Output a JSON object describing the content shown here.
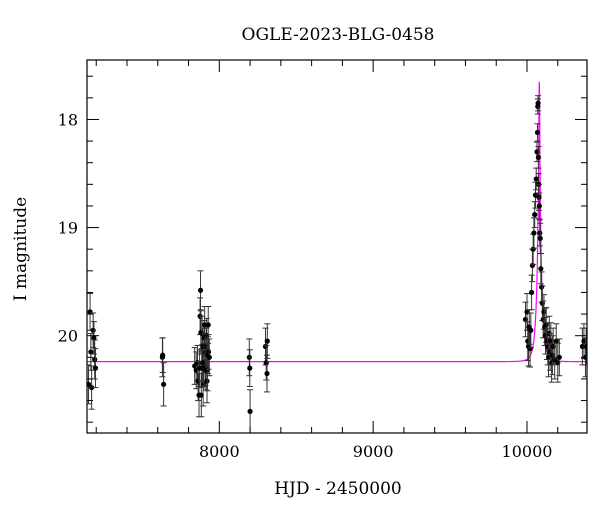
{
  "chart_data": {
    "type": "scatter",
    "title": "OGLE-2023-BLG-0458",
    "xlabel": "HJD - 2450000",
    "ylabel": "I magnitude",
    "xlim": [
      7140,
      10390
    ],
    "ylim": [
      20.9,
      17.45
    ],
    "y_inverted": true,
    "x_ticks": [
      8000,
      9000,
      10000
    ],
    "x_tick_labels": [
      "8000",
      "9000",
      "10000"
    ],
    "y_ticks": [
      18,
      19,
      20
    ],
    "y_tick_labels": [
      "18",
      "19",
      "20"
    ],
    "grid": false,
    "colors": {
      "points": "#000000",
      "errorbars": "#333333",
      "model": "#ff00ff",
      "axes": "#000000"
    },
    "model": {
      "type": "point-lens microlensing fit",
      "baseline": 20.24,
      "t0": 10080,
      "peak_mag": 17.65
    },
    "series": [
      {
        "points": [
          [
            7150,
            20.45,
            0.18
          ],
          [
            7160,
            19.78,
            0.17
          ],
          [
            7165,
            20.15,
            0.17
          ],
          [
            7170,
            20.48,
            0.2
          ],
          [
            7180,
            19.95,
            0.16
          ],
          [
            7185,
            20.02,
            0.15
          ],
          [
            7190,
            20.22,
            0.18
          ],
          [
            7195,
            20.3,
            0.18
          ],
          [
            7630,
            20.2,
            0.18
          ],
          [
            7632,
            20.18,
            0.16
          ],
          [
            7638,
            20.45,
            0.2
          ],
          [
            7840,
            20.28,
            0.17
          ],
          [
            7850,
            20.32,
            0.17
          ],
          [
            7858,
            20.25,
            0.16
          ],
          [
            7862,
            20.42,
            0.18
          ],
          [
            7868,
            20.55,
            0.2
          ],
          [
            7872,
            20.3,
            0.17
          ],
          [
            7875,
            19.82,
            0.17
          ],
          [
            7878,
            19.58,
            0.18
          ],
          [
            7880,
            19.97,
            0.2
          ],
          [
            7883,
            20.55,
            0.2
          ],
          [
            7886,
            20.3,
            0.18
          ],
          [
            7888,
            19.98,
            0.16
          ],
          [
            7890,
            20.25,
            0.17
          ],
          [
            7893,
            20.1,
            0.17
          ],
          [
            7895,
            20.45,
            0.2
          ],
          [
            7898,
            20.3,
            0.17
          ],
          [
            7900,
            20.25,
            0.18
          ],
          [
            7902,
            20.02,
            0.16
          ],
          [
            7905,
            19.9,
            0.17
          ],
          [
            7908,
            20.15,
            0.17
          ],
          [
            7910,
            20.28,
            0.18
          ],
          [
            7912,
            20.32,
            0.18
          ],
          [
            7915,
            20.1,
            0.17
          ],
          [
            7918,
            20.0,
            0.16
          ],
          [
            7920,
            20.42,
            0.2
          ],
          [
            7923,
            20.32,
            0.19
          ],
          [
            7925,
            20.18,
            0.17
          ],
          [
            7928,
            19.9,
            0.17
          ],
          [
            7930,
            20.15,
            0.16
          ],
          [
            7935,
            20.2,
            0.17
          ],
          [
            8195,
            20.2,
            0.17
          ],
          [
            8198,
            20.3,
            0.17
          ],
          [
            8200,
            20.7,
            0.2
          ],
          [
            8300,
            20.1,
            0.17
          ],
          [
            8305,
            20.25,
            0.16
          ],
          [
            8310,
            20.35,
            0.17
          ],
          [
            8312,
            20.05,
            0.16
          ],
          [
            9990,
            19.85,
            0.16
          ],
          [
            10000,
            19.78,
            0.17
          ],
          [
            10005,
            20.05,
            0.18
          ],
          [
            10010,
            20.1,
            0.18
          ],
          [
            10015,
            19.92,
            0.16
          ],
          [
            10020,
            20.12,
            0.17
          ],
          [
            10025,
            19.95,
            0.16
          ],
          [
            10030,
            19.6,
            0.16
          ],
          [
            10035,
            19.35,
            0.15
          ],
          [
            10040,
            19.2,
            0.14
          ],
          [
            10045,
            19.05,
            0.14
          ],
          [
            10050,
            18.88,
            0.12
          ],
          [
            10055,
            18.7,
            0.12
          ],
          [
            10060,
            18.55,
            0.1
          ],
          [
            10065,
            18.3,
            0.09
          ],
          [
            10068,
            18.12,
            0.08
          ],
          [
            10070,
            17.88,
            0.07
          ],
          [
            10072,
            17.85,
            0.07
          ],
          [
            10074,
            18.35,
            0.1
          ],
          [
            10076,
            18.6,
            0.1
          ],
          [
            10078,
            18.72,
            0.12
          ],
          [
            10080,
            18.8,
            0.12
          ],
          [
            10083,
            19.05,
            0.12
          ],
          [
            10086,
            19.1,
            0.14
          ],
          [
            10090,
            19.38,
            0.14
          ],
          [
            10095,
            19.55,
            0.14
          ],
          [
            10100,
            19.7,
            0.16
          ],
          [
            10105,
            19.85,
            0.17
          ],
          [
            10110,
            19.78,
            0.16
          ],
          [
            10115,
            19.92,
            0.17
          ],
          [
            10120,
            20.0,
            0.17
          ],
          [
            10125,
            19.9,
            0.16
          ],
          [
            10130,
            20.05,
            0.17
          ],
          [
            10135,
            20.1,
            0.17
          ],
          [
            10140,
            20.2,
            0.18
          ],
          [
            10145,
            19.98,
            0.16
          ],
          [
            10150,
            20.15,
            0.17
          ],
          [
            10155,
            20.05,
            0.17
          ],
          [
            10160,
            20.25,
            0.18
          ],
          [
            10165,
            20.18,
            0.18
          ],
          [
            10170,
            20.1,
            0.17
          ],
          [
            10180,
            20.22,
            0.18
          ],
          [
            10190,
            20.05,
            0.16
          ],
          [
            10200,
            20.25,
            0.18
          ],
          [
            10210,
            20.2,
            0.17
          ],
          [
            10360,
            20.1,
            0.17
          ],
          [
            10370,
            20.05,
            0.16
          ],
          [
            10380,
            20.2,
            0.18
          ],
          [
            10385,
            20.1,
            0.17
          ]
        ]
      }
    ]
  }
}
